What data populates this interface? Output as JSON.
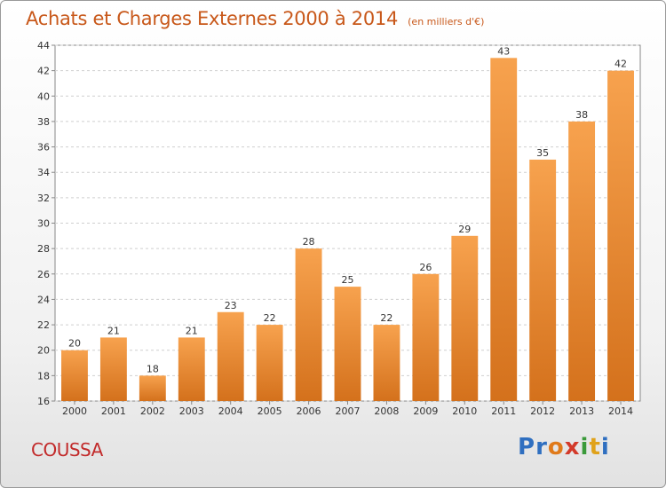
{
  "header": {
    "title": "Achats et Charges Externes 2000 à 2014",
    "subtitle": "(en milliers d'€)"
  },
  "footer": {
    "commune": "COUSSA",
    "logo_text": "Proxiti"
  },
  "colors": {
    "bar_light": "#f7a24e",
    "bar_dark": "#d4711c",
    "title": "#c8581a",
    "commune": "#c22a2a"
  },
  "chart_data": {
    "type": "bar",
    "title": "Achats et Charges Externes 2000 à 2014",
    "subtitle": "(en milliers d'€)",
    "categories": [
      "2000",
      "2001",
      "2002",
      "2003",
      "2004",
      "2005",
      "2006",
      "2007",
      "2008",
      "2009",
      "2010",
      "2011",
      "2012",
      "2013",
      "2014"
    ],
    "values": [
      20,
      21,
      18,
      21,
      23,
      22,
      28,
      25,
      22,
      26,
      29,
      43,
      35,
      38,
      42
    ],
    "ylim": [
      16,
      44
    ],
    "yticks": [
      16,
      18,
      20,
      22,
      24,
      26,
      28,
      30,
      32,
      34,
      36,
      38,
      40,
      42,
      44
    ],
    "grid": true,
    "data_labels": true
  }
}
